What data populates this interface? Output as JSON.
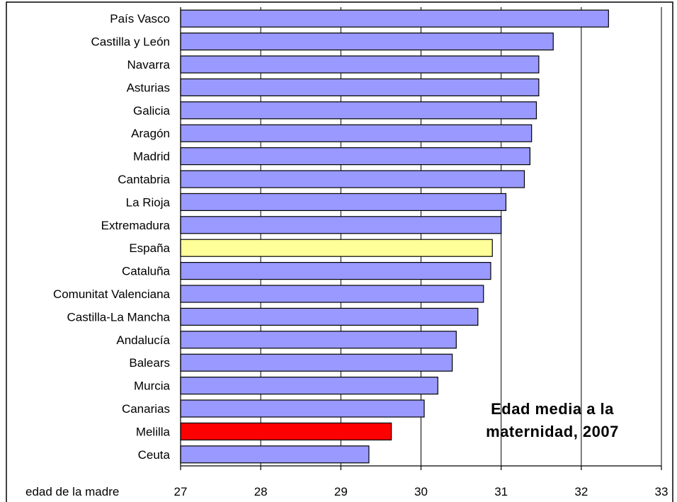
{
  "chart_data": {
    "type": "bar",
    "orientation": "horizontal",
    "title_lines": [
      "Edad media a la",
      "maternidad, 2007"
    ],
    "xlabel": "edad de la madre",
    "xlim": [
      27,
      33
    ],
    "x_ticks": [
      27,
      28,
      29,
      30,
      31,
      32,
      33
    ],
    "grid": "vertical",
    "categories": [
      "País Vasco",
      "Castilla y León",
      "Navarra",
      "Asturias",
      "Galicia",
      "Aragón",
      "Madrid",
      "Cantabria",
      "La Rioja",
      "Extremadura",
      "España",
      "Cataluña",
      "Comunitat Valenciana",
      "Castilla-La Mancha",
      "Andalucía",
      "Balears",
      "Murcia",
      "Canarias",
      "Melilla",
      "Ceuta"
    ],
    "values": [
      32.34,
      31.65,
      31.47,
      31.47,
      31.44,
      31.38,
      31.36,
      31.29,
      31.06,
      31.0,
      30.89,
      30.87,
      30.78,
      30.71,
      30.44,
      30.39,
      30.21,
      30.04,
      29.63,
      29.35
    ],
    "bar_colors": [
      "#9999ff",
      "#9999ff",
      "#9999ff",
      "#9999ff",
      "#9999ff",
      "#9999ff",
      "#9999ff",
      "#9999ff",
      "#9999ff",
      "#9999ff",
      "#ffff99",
      "#9999ff",
      "#9999ff",
      "#9999ff",
      "#9999ff",
      "#9999ff",
      "#9999ff",
      "#9999ff",
      "#ff0000",
      "#9999ff"
    ]
  }
}
